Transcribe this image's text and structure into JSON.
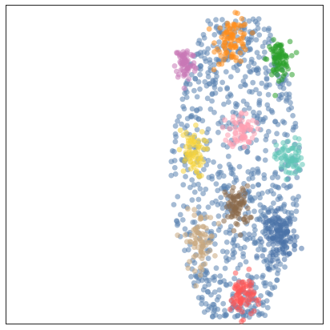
{
  "chart_data": {
    "type": "scatter",
    "title": "",
    "xlabel": "",
    "ylabel": "",
    "axes_visible": false,
    "grid": false,
    "legend": "none",
    "xlim": [
      0,
      100
    ],
    "ylim": [
      0,
      100
    ],
    "marker": {
      "shape": "circle",
      "alpha": 0.55
    },
    "background_color": "#5b84b1",
    "background_count": 850,
    "background_region": {
      "x": [
        52,
        93
      ],
      "y": [
        2,
        96
      ]
    },
    "clusters": [
      {
        "color": "#ff8c1a",
        "center": [
          71.5,
          89
        ],
        "spread": [
          2.6,
          3.6
        ],
        "count": 90
      },
      {
        "color": "#2ca02c",
        "center": [
          86,
          83
        ],
        "spread": [
          1.8,
          2.8
        ],
        "count": 80
      },
      {
        "color": "#c978b6",
        "center": [
          56.5,
          82
        ],
        "spread": [
          1.6,
          2.8
        ],
        "count": 70
      },
      {
        "color": "#ff9fb0",
        "center": [
          74.5,
          61
        ],
        "spread": [
          2.1,
          2.8
        ],
        "count": 65
      },
      {
        "color": "#f5d33c",
        "center": [
          58.5,
          53.5
        ],
        "spread": [
          2.1,
          3.8
        ],
        "count": 70
      },
      {
        "color": "#5ec4b6",
        "center": [
          89.5,
          52
        ],
        "spread": [
          2.1,
          3.0
        ],
        "count": 70
      },
      {
        "color": "#8b6a4a",
        "center": [
          73,
          36.5
        ],
        "spread": [
          1.9,
          3.3
        ],
        "count": 75
      },
      {
        "color": "#c8a87e",
        "center": [
          61,
          26
        ],
        "spread": [
          2.3,
          4.5
        ],
        "count": 75
      },
      {
        "color": "#4a72a8",
        "center": [
          86.5,
          27.5
        ],
        "spread": [
          2.6,
          3.6
        ],
        "count": 130
      },
      {
        "color": "#ff5555",
        "center": [
          74.5,
          8.5
        ],
        "spread": [
          1.9,
          3.3
        ],
        "count": 75
      }
    ]
  }
}
